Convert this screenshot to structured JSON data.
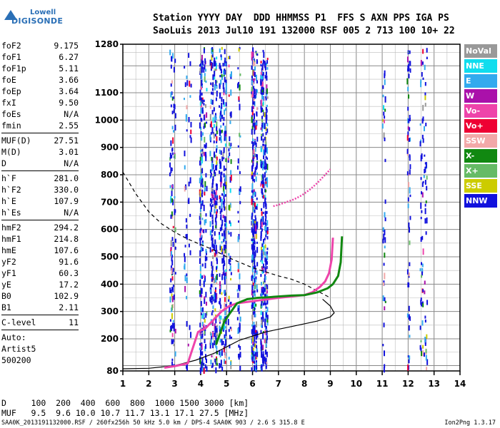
{
  "logo": {
    "line1": "Lowell",
    "line2": "DIGISONDE"
  },
  "header": {
    "labels": "Station YYYY DAY  DDD HHMMSS P1  FFS S AXN PPS IGA PS",
    "values": "SaoLuis 2013 Jul10 191 132000 RSF 005 2 713 100 10+ 22"
  },
  "params": [
    {
      "group": [
        {
          "name": "foF2",
          "value": "9.175"
        },
        {
          "name": "foF1",
          "value": "6.27"
        },
        {
          "name": "foF1p",
          "value": "5.11"
        },
        {
          "name": "foE",
          "value": "3.66"
        },
        {
          "name": "foEp",
          "value": "3.64"
        },
        {
          "name": "fxI",
          "value": "9.50"
        },
        {
          "name": "foEs",
          "value": "N/A"
        },
        {
          "name": "fmin",
          "value": "2.55"
        }
      ]
    },
    {
      "group": [
        {
          "name": "MUF(D)",
          "value": "27.51"
        },
        {
          "name": "M(D)",
          "value": "3.01"
        },
        {
          "name": "D",
          "value": "N/A"
        }
      ]
    },
    {
      "group": [
        {
          "name": "h`F",
          "value": "281.0"
        },
        {
          "name": "h`F2",
          "value": "330.0"
        },
        {
          "name": "h`E",
          "value": "107.9"
        },
        {
          "name": "h`Es",
          "value": "N/A"
        }
      ]
    },
    {
      "group": [
        {
          "name": "hmF2",
          "value": "294.2"
        },
        {
          "name": "hmF1",
          "value": "214.8"
        },
        {
          "name": "hmE",
          "value": "107.6"
        },
        {
          "name": "yF2",
          "value": "91.6"
        },
        {
          "name": "yF1",
          "value": "60.3"
        },
        {
          "name": "yE",
          "value": "17.2"
        },
        {
          "name": "B0",
          "value": "102.9"
        },
        {
          "name": "B1",
          "value": "2.11"
        }
      ]
    },
    {
      "group": [
        {
          "name": "C-level",
          "value": "11"
        }
      ]
    }
  ],
  "auto": {
    "line1": "Auto:",
    "line2": "Artist5",
    "line3": "500200"
  },
  "legend": [
    {
      "label": "NoVal",
      "color": "#999999"
    },
    {
      "label": "NNE",
      "color": "#11ddee"
    },
    {
      "label": "E",
      "color": "#33aaee"
    },
    {
      "label": "W",
      "color": "#aa11aa"
    },
    {
      "label": "Vo-",
      "color": "#ee44aa"
    },
    {
      "label": "Vo+",
      "color": "#ee0033"
    },
    {
      "label": "SSW",
      "color": "#f2a8a8"
    },
    {
      "label": "X-",
      "color": "#118811"
    },
    {
      "label": "X+",
      "color": "#66bb66"
    },
    {
      "label": "SSE",
      "color": "#cccc00"
    },
    {
      "label": "NNW",
      "color": "#1111dd"
    }
  ],
  "muf_table": {
    "d_row": "D     100  200  400  600  800  1000 1500 3000 [km]",
    "muf_row": "MUF   9.5  9.6 10.0 10.7 11.7 13.1 17.1 27.5 [MHz]"
  },
  "footer": {
    "left": "SAA0K_2013191132000.RSF / 260fx256h 50 kHz 5.0 km / DPS-4 SAA0K 903 / 2.6 S 315.8 E",
    "right": "Ion2Png 1.3.17"
  },
  "chart_data": {
    "type": "scatter",
    "title": "",
    "xlabel": "",
    "ylabel": "",
    "xlim": [
      1,
      14
    ],
    "ylim": [
      80,
      1280
    ],
    "x_ticks": [
      1,
      2,
      3,
      4,
      5,
      6,
      7,
      8,
      9,
      10,
      11,
      12,
      13,
      14
    ],
    "y_ticks": [
      80,
      200,
      300,
      400,
      500,
      600,
      700,
      800,
      900,
      1000,
      1100,
      1280
    ],
    "grid": true,
    "legend_position": "right",
    "curves": [
      {
        "style": "dashed",
        "color": "#000000",
        "x": [
          1.0,
          1.5,
          2.0,
          2.5,
          3.0,
          3.5,
          4.0,
          4.5,
          5.0,
          5.5,
          6.0,
          6.5,
          7.0,
          7.5,
          8.0,
          8.5,
          8.8,
          9.0
        ],
        "y": [
          810,
          730,
          665,
          620,
          590,
          565,
          545,
          525,
          500,
          480,
          460,
          445,
          430,
          418,
          400,
          375,
          360,
          350
        ]
      },
      {
        "style": "solid",
        "color": "#000000",
        "x": [
          1.0,
          2.0,
          3.0,
          3.8,
          4.5,
          5.0,
          5.5,
          6.0,
          6.5,
          7.0,
          7.5,
          8.0,
          8.5,
          9.0,
          9.15,
          9.0,
          8.7
        ],
        "y": [
          88,
          90,
          100,
          120,
          145,
          170,
          195,
          210,
          225,
          235,
          245,
          255,
          265,
          280,
          295,
          320,
          345
        ]
      },
      {
        "style": "solid",
        "color": "#ee44aa",
        "x": [
          2.6,
          3.0,
          3.5,
          3.9,
          4.2,
          4.5,
          4.8,
          5.1,
          5.4,
          5.8,
          6.2,
          6.6,
          7.0,
          7.5,
          8.0,
          8.3,
          8.6,
          8.8,
          8.95,
          9.05,
          9.1
        ],
        "y": [
          92,
          98,
          108,
          225,
          240,
          270,
          300,
          320,
          330,
          335,
          340,
          345,
          350,
          355,
          360,
          370,
          390,
          410,
          440,
          490,
          570
        ]
      },
      {
        "style": "solid",
        "color": "#118811",
        "x": [
          4.6,
          4.9,
          5.1,
          5.4,
          5.8,
          6.2,
          6.6,
          7.0,
          7.5,
          8.0,
          8.5,
          8.9,
          9.1,
          9.3,
          9.4,
          9.45
        ],
        "y": [
          180,
          260,
          290,
          330,
          345,
          350,
          352,
          355,
          358,
          360,
          370,
          385,
          400,
          430,
          480,
          575
        ]
      },
      {
        "style": "dotted",
        "color": "#ee44aa",
        "x": [
          6.8,
          7.0,
          7.3,
          7.6,
          7.9,
          8.2,
          8.5,
          8.8,
          9.0
        ],
        "y": [
          685,
          690,
          700,
          710,
          725,
          745,
          770,
          800,
          820
        ]
      }
    ]
  }
}
